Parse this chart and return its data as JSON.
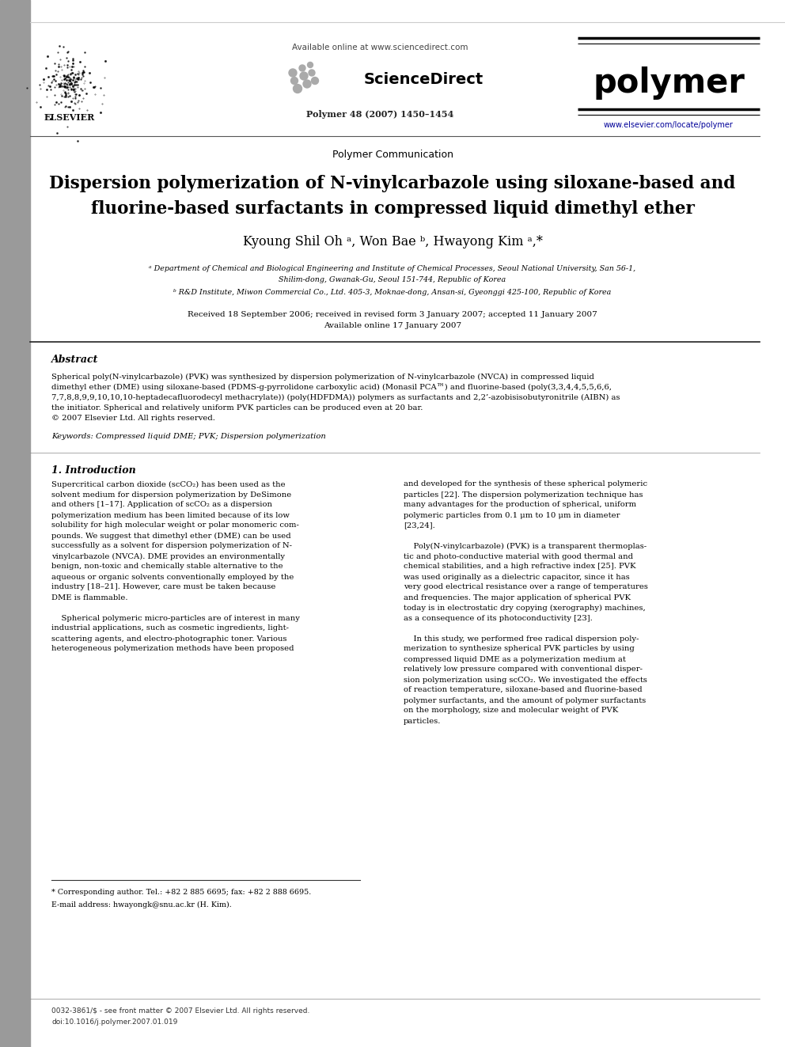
{
  "bg_color": "#ffffff",
  "sidebar_color": "#9a9a9a",
  "header": {
    "available_online": "Available online at www.sciencedirect.com",
    "sciencedirect": "ScienceDirect",
    "journal": "polymer",
    "journal_info": "Polymer 48 (2007) 1450–1454",
    "url": "www.elsevier.com/locate/polymer",
    "elsevier": "ELSEVIER"
  },
  "article_type": "Polymer Communication",
  "title_line1": "Dispersion polymerization of N-vinylcarbazole using siloxane-based and",
  "title_line2": "fluorine-based surfactants in compressed liquid dimethyl ether",
  "authors": "Kyoung Shil Oh ᵃ, Won Bae ᵇ, Hwayong Kim ᵃ,*",
  "affil1": "ᵃ Department of Chemical and Biological Engineering and Institute of Chemical Processes, Seoul National University, San 56-1,",
  "affil1b": "Shilim-dong, Gwanak-Gu, Seoul 151-744, Republic of Korea",
  "affil2": "ᵇ R&D Institute, Miwon Commercial Co., Ltd. 405-3, Moknae-dong, Ansan-si, Gyeonggi 425-100, Republic of Korea",
  "received": "Received 18 September 2006; received in revised form 3 January 2007; accepted 11 January 2007",
  "available": "Available online 17 January 2007",
  "abstract_title": "Abstract",
  "keywords": "Keywords: Compressed liquid DME; PVK; Dispersion polymerization",
  "section1_title": "1. Introduction",
  "footnote_corr": "* Corresponding author. Tel.: +82 2 885 6695; fax: +82 2 888 6695.",
  "footnote_email": "E-mail address: hwayongk@snu.ac.kr (H. Kim).",
  "footer1": "0032-3861/$ - see front matter © 2007 Elsevier Ltd. All rights reserved.",
  "footer2": "doi:10.1016/j.polymer.2007.01.019",
  "col1_lines": [
    "Supercritical carbon dioxide (scCO₂) has been used as the",
    "solvent medium for dispersion polymerization by DeSimone",
    "and others [1–17]. Application of scCO₂ as a dispersion",
    "polymerization medium has been limited because of its low",
    "solubility for high molecular weight or polar monomeric com-",
    "pounds. We suggest that dimethyl ether (DME) can be used",
    "successfully as a solvent for dispersion polymerization of N-",
    "vinylcarbazole (NVCA). DME provides an environmentally",
    "benign, non-toxic and chemically stable alternative to the",
    "aqueous or organic solvents conventionally employed by the",
    "industry [18–21]. However, care must be taken because",
    "DME is flammable.",
    "",
    "    Spherical polymeric micro-particles are of interest in many",
    "industrial applications, such as cosmetic ingredients, light-",
    "scattering agents, and electro-photographic toner. Various",
    "heterogeneous polymerization methods have been proposed"
  ],
  "col2_lines": [
    "and developed for the synthesis of these spherical polymeric",
    "particles [22]. The dispersion polymerization technique has",
    "many advantages for the production of spherical, uniform",
    "polymeric particles from 0.1 μm to 10 μm in diameter",
    "[23,24].",
    "",
    "    Poly(N-vinylcarbazole) (PVK) is a transparent thermoplas-",
    "tic and photo-conductive material with good thermal and",
    "chemical stabilities, and a high refractive index [25]. PVK",
    "was used originally as a dielectric capacitor, since it has",
    "very good electrical resistance over a range of temperatures",
    "and frequencies. The major application of spherical PVK",
    "today is in electrostatic dry copying (xerography) machines,",
    "as a consequence of its photoconductivity [23].",
    "",
    "    In this study, we performed free radical dispersion poly-",
    "merization to synthesize spherical PVK particles by using",
    "compressed liquid DME as a polymerization medium at",
    "relatively low pressure compared with conventional disper-",
    "sion polymerization using scCO₂. We investigated the effects",
    "of reaction temperature, siloxane-based and fluorine-based",
    "polymer surfactants, and the amount of polymer surfactants",
    "on the morphology, size and molecular weight of PVK",
    "particles."
  ],
  "abstract_lines": [
    "Spherical poly(N-vinylcarbazole) (PVK) was synthesized by dispersion polymerization of N-vinylcarbazole (NVCA) in compressed liquid",
    "dimethyl ether (DME) using siloxane-based (PDMS-g-pyrrolidone carboxylic acid) (Monasil PCA™) and fluorine-based (poly(3,3,4,4,5,5,6,6,",
    "7,7,8,8,9,9,10,10,10-heptadecafluorodecyl methacrylate)) (poly(HDFDMA)) polymers as surfactants and 2,2’-azobisisobutyronitrile (AIBN) as",
    "the initiator. Spherical and relatively uniform PVK particles can be produced even at 20 bar.",
    "© 2007 Elsevier Ltd. All rights reserved."
  ]
}
